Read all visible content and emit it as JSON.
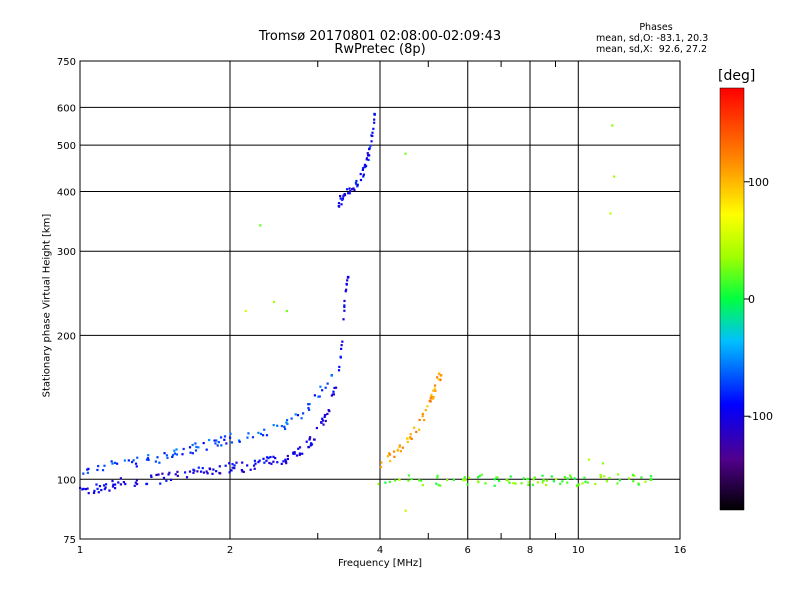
{
  "title_line1": "Tromsø 20170801 02:08:00-02:09:43",
  "title_line2": "RwPretec (8p)",
  "stats": {
    "header": "Phases",
    "line_o": "mean, sd,O: -83.1, 20.3",
    "line_x": "mean, sd,X:  92.6, 27.2"
  },
  "colorbar": {
    "label": "[deg]",
    "ticks": [
      "100",
      "0",
      "-100"
    ],
    "tick_values": [
      100,
      0,
      -100
    ],
    "range": [
      -180,
      180
    ]
  },
  "chart_data": {
    "type": "scatter",
    "xlabel": "Frequency [MHz]",
    "ylabel": "Stationary phase Virtual Height [km]",
    "x_scale": "log",
    "y_scale": "log",
    "xlim": [
      1,
      16
    ],
    "ylim": [
      75,
      750
    ],
    "grid": true,
    "x_ticks": [
      1,
      2,
      4,
      6,
      8,
      10,
      16
    ],
    "x_minor_ticks": [
      3,
      5,
      7,
      9
    ],
    "y_ticks": [
      75,
      100,
      200,
      300,
      400,
      500,
      600,
      750
    ],
    "series": [
      {
        "trace": "o-mode lower trace",
        "points": [
          [
            1.0,
            94
          ],
          [
            1.05,
            95
          ],
          [
            1.1,
            96
          ],
          [
            1.15,
            97
          ],
          [
            1.2,
            98
          ],
          [
            1.3,
            99
          ],
          [
            1.4,
            100
          ],
          [
            1.5,
            101
          ],
          [
            1.6,
            102
          ],
          [
            1.7,
            103
          ],
          [
            1.8,
            104
          ],
          [
            1.9,
            105
          ],
          [
            2.0,
            106
          ],
          [
            2.1,
            106
          ],
          [
            2.2,
            107
          ],
          [
            2.3,
            108
          ],
          [
            2.4,
            109
          ],
          [
            2.5,
            110
          ],
          [
            2.6,
            111
          ],
          [
            2.7,
            113
          ],
          [
            2.8,
            116
          ],
          [
            2.9,
            120
          ],
          [
            3.0,
            126
          ],
          [
            3.1,
            134
          ],
          [
            3.2,
            146
          ],
          [
            3.3,
            162
          ],
          [
            3.35,
            190
          ],
          [
            3.4,
            240
          ],
          [
            3.45,
            265
          ]
        ],
        "phase_deg": -100
      },
      {
        "trace": "o-mode upper band",
        "points": [
          [
            1.0,
            105
          ],
          [
            1.1,
            106
          ],
          [
            1.2,
            107
          ],
          [
            1.3,
            109
          ],
          [
            1.4,
            110
          ],
          [
            1.5,
            112
          ],
          [
            1.6,
            114
          ],
          [
            1.7,
            116
          ],
          [
            1.8,
            118
          ],
          [
            1.9,
            120
          ],
          [
            2.0,
            122
          ],
          [
            2.2,
            124
          ],
          [
            2.4,
            126
          ],
          [
            2.6,
            130
          ],
          [
            2.8,
            138
          ],
          [
            3.0,
            150
          ],
          [
            3.2,
            165
          ]
        ],
        "phase_deg": -70
      },
      {
        "trace": "F1 cusp",
        "points": [
          [
            3.3,
            380
          ],
          [
            3.35,
            385
          ],
          [
            3.4,
            392
          ],
          [
            3.5,
            402
          ],
          [
            3.6,
            420
          ],
          [
            3.7,
            440
          ],
          [
            3.75,
            460
          ],
          [
            3.8,
            480
          ],
          [
            3.85,
            520
          ],
          [
            3.9,
            580
          ]
        ],
        "phase_deg": -90
      },
      {
        "trace": "x-mode trace",
        "points": [
          [
            4.0,
            108
          ],
          [
            4.2,
            112
          ],
          [
            4.4,
            116
          ],
          [
            4.6,
            122
          ],
          [
            4.8,
            130
          ],
          [
            5.0,
            142
          ],
          [
            5.1,
            150
          ],
          [
            5.2,
            160
          ],
          [
            5.3,
            165
          ]
        ],
        "phase_deg": 110
      },
      {
        "trace": "sporadic E near 100 km",
        "points": [
          [
            3.9,
            99
          ],
          [
            4.5,
            100
          ],
          [
            5.0,
            99
          ],
          [
            5.5,
            100
          ],
          [
            6.0,
            99
          ],
          [
            6.5,
            100
          ],
          [
            7.0,
            99
          ],
          [
            7.5,
            100
          ],
          [
            8.0,
            99
          ],
          [
            8.5,
            100
          ],
          [
            9.0,
            99
          ],
          [
            9.5,
            100
          ],
          [
            10.0,
            99
          ],
          [
            11.0,
            100
          ],
          [
            12.0,
            100
          ],
          [
            13.0,
            100
          ],
          [
            14.0,
            100
          ]
        ],
        "phase_deg": 20
      },
      {
        "trace": "scattered points",
        "points": [
          [
            2.15,
            225
          ],
          [
            2.45,
            235
          ],
          [
            2.6,
            225
          ],
          [
            2.3,
            340
          ],
          [
            4.5,
            480
          ],
          [
            11.7,
            550
          ],
          [
            11.8,
            430
          ],
          [
            11.6,
            360
          ],
          [
            4.5,
            86
          ],
          [
            10.5,
            110
          ],
          [
            11.2,
            108
          ]
        ],
        "phase_deg": 40
      }
    ]
  }
}
